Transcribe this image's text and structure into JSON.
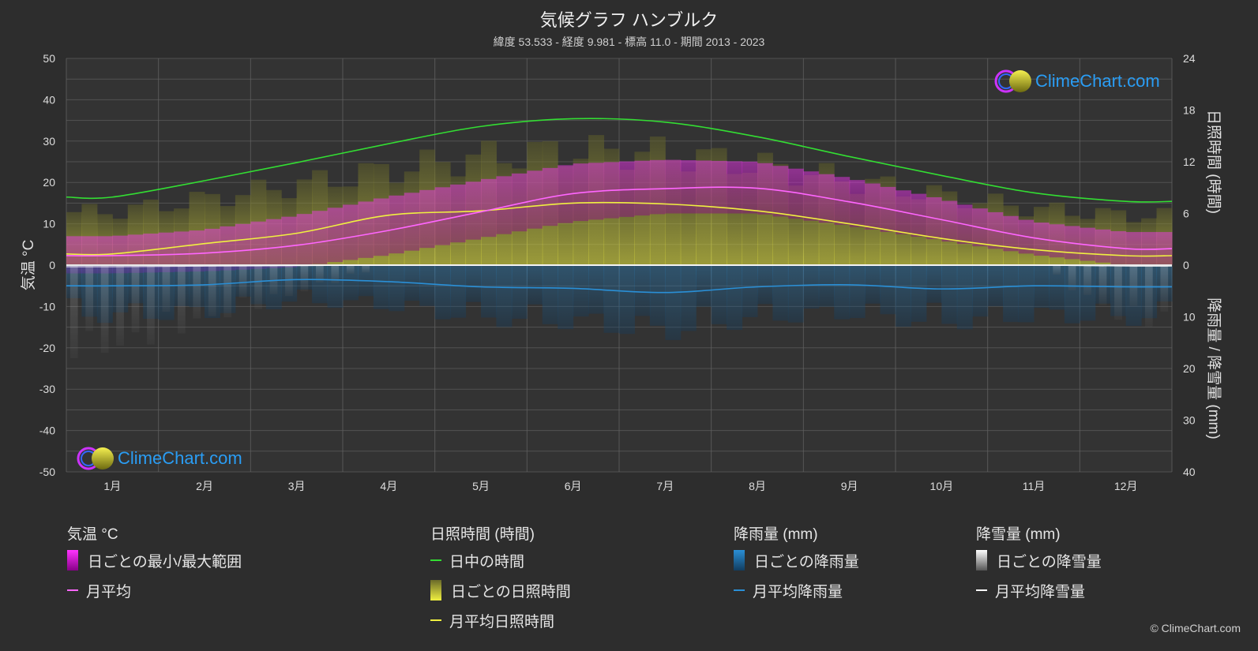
{
  "title": "気候グラフ ハンブルク",
  "subtitle": "緯度 53.533 - 経度 9.981 - 標高 11.0 - 期間 2013 - 2023",
  "copyright": "© ClimeChart.com",
  "watermark": "ClimeChart.com",
  "legend": {
    "temperature": {
      "header": "気温 °C",
      "range": "日ごとの最小/最大範囲",
      "mean": "月平均"
    },
    "sunshine": {
      "header": "日照時間 (時間)",
      "daylight": "日中の時間",
      "daily": "日ごとの日照時間",
      "mean": "月平均日照時間"
    },
    "rain": {
      "header": "降雨量 (mm)",
      "daily": "日ごとの降雨量",
      "mean": "月平均降雨量"
    },
    "snow": {
      "header": "降雪量 (mm)",
      "daily": "日ごとの降雪量",
      "mean": "月平均降雪量"
    }
  },
  "colors": {
    "background": "#2d2d2d",
    "daylight": "#33dd33",
    "sunshine_mean": "#f0f040",
    "sunshine_bars": "#a8a830",
    "temp_mean": "#ff66ff",
    "temp_range": "#cc33cc",
    "rain": "#2a8fd6",
    "snow": "#ffffff",
    "grid": "#606060"
  },
  "chart_data": {
    "type": "line",
    "categories": [
      "1月",
      "2月",
      "3月",
      "4月",
      "5月",
      "6月",
      "7月",
      "8月",
      "9月",
      "10月",
      "11月",
      "12月"
    ],
    "y_left": {
      "label": "気温 °C",
      "ticks": [
        50,
        40,
        30,
        20,
        10,
        0,
        -10,
        -20,
        -30,
        -40,
        -50
      ],
      "lim": [
        -50,
        50
      ]
    },
    "y_right_top": {
      "label": "日照時間 (時間)",
      "ticks": [
        24,
        18,
        12,
        6,
        0
      ],
      "lim": [
        0,
        24
      ]
    },
    "y_right_bottom": {
      "label": "降雨量 / 降雪量 (mm)",
      "ticks": [
        0,
        10,
        20,
        30,
        40
      ],
      "lim": [
        0,
        40
      ]
    },
    "series": [
      {
        "name": "日中の時間",
        "axis": "sunshine",
        "values": [
          7.9,
          9.8,
          11.9,
          14.1,
          16.1,
          17.0,
          16.6,
          14.9,
          12.6,
          10.4,
          8.4,
          7.4
        ]
      },
      {
        "name": "月平均日照時間",
        "axis": "sunshine",
        "values": [
          1.3,
          2.5,
          3.7,
          5.8,
          6.3,
          7.2,
          7.1,
          6.3,
          4.8,
          3.1,
          1.8,
          1.1
        ]
      },
      {
        "name": "月平均",
        "axis": "temperature",
        "values": [
          2.3,
          2.9,
          4.8,
          8.4,
          12.9,
          17.3,
          18.5,
          18.6,
          15.3,
          11.0,
          6.6,
          4.0
        ]
      },
      {
        "name": "月平均降雨量",
        "axis": "precipitation",
        "values": [
          4.0,
          3.8,
          2.8,
          3.2,
          4.2,
          4.5,
          5.3,
          4.2,
          3.8,
          4.6,
          4.0,
          4.2
        ]
      },
      {
        "name": "月平均降雪量",
        "axis": "precipitation",
        "values": [
          0.3,
          0.2,
          0.1,
          0.0,
          0.0,
          0.0,
          0.0,
          0.0,
          0.0,
          0.0,
          0.0,
          0.2
        ]
      }
    ],
    "daily_temp_range_monthly": {
      "min": [
        -1.0,
        -0.5,
        0.5,
        3.5,
        7.5,
        11.5,
        13.5,
        13.5,
        10.5,
        7.0,
        3.5,
        1.0
      ],
      "max": [
        5.5,
        7.0,
        10.5,
        15.0,
        19.0,
        23.0,
        24.0,
        23.5,
        19.5,
        14.5,
        9.0,
        6.5
      ]
    }
  }
}
